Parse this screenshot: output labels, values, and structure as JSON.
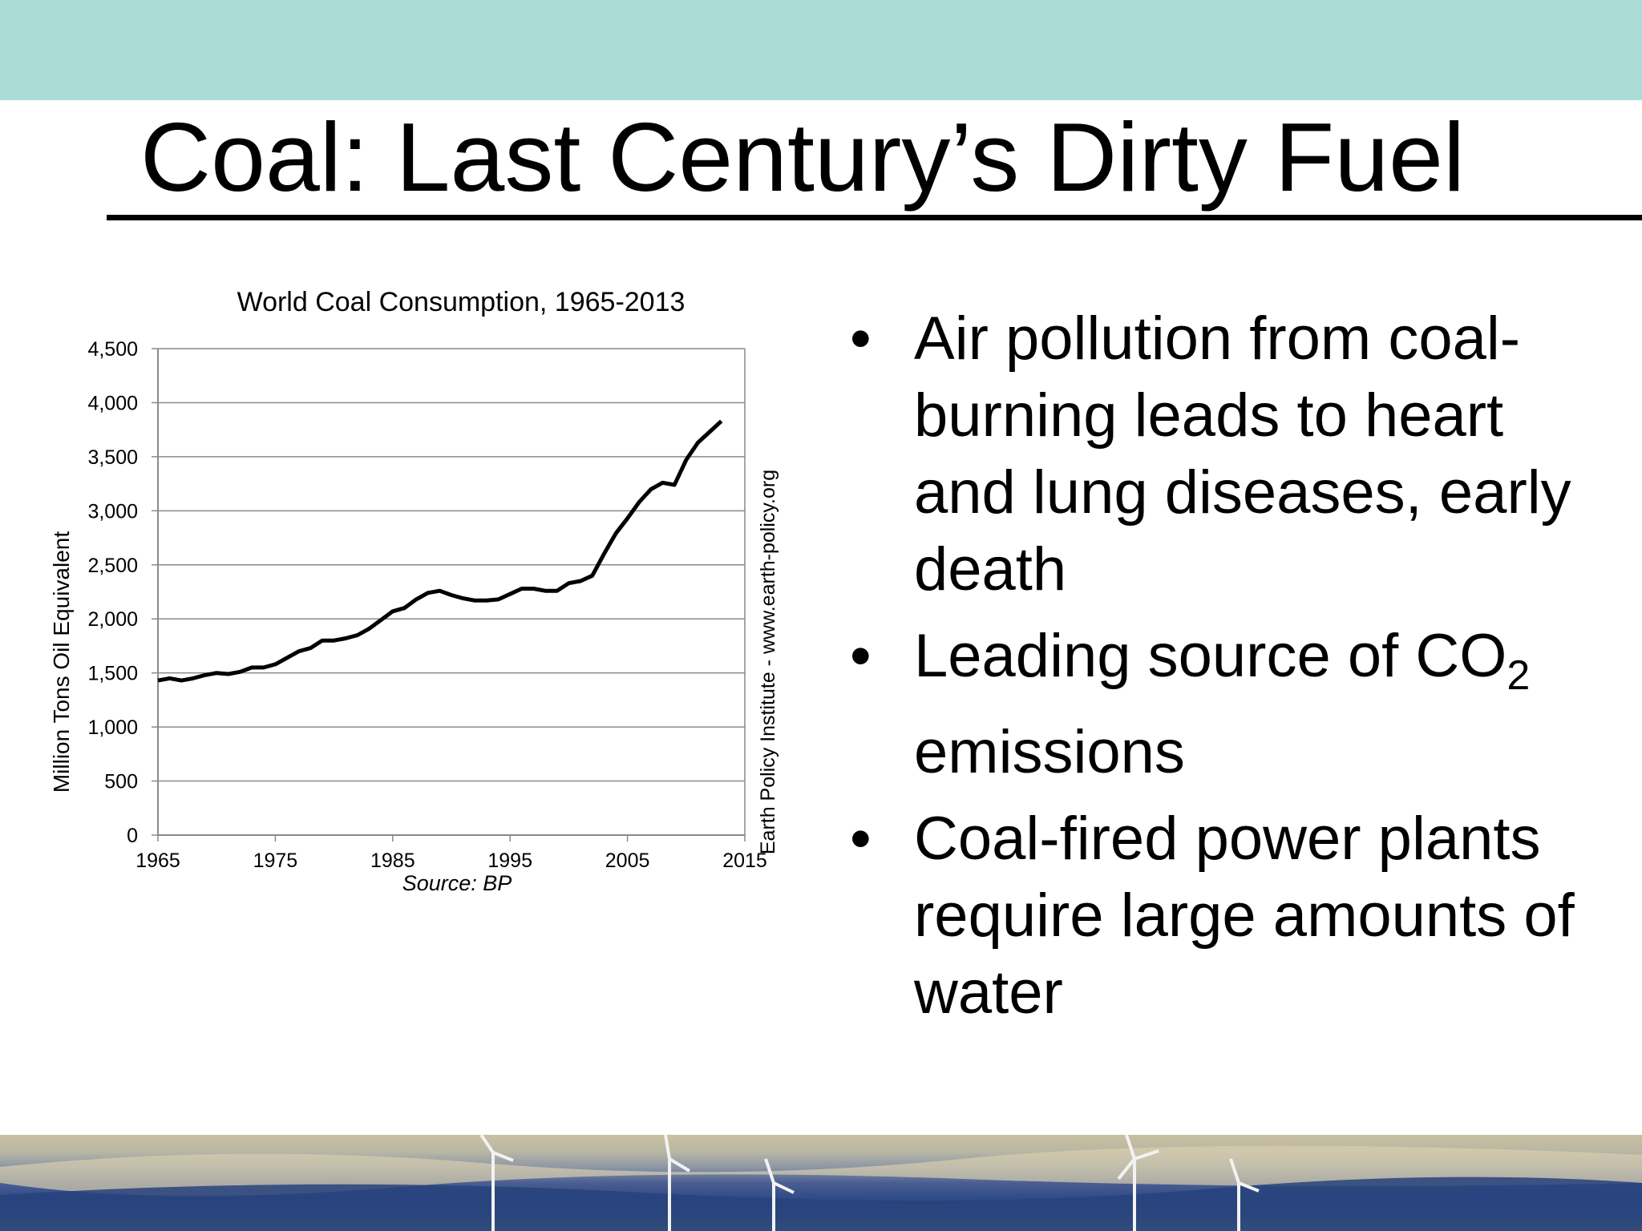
{
  "slide": {
    "title": "Coal: Last Century’s Dirty Fuel",
    "colors": {
      "top_band": "#acdcd6",
      "text": "#000000",
      "line": "#000000"
    }
  },
  "bullets": [
    {
      "text": "Air pollution from coal-burning leads to heart and lung diseases, early death"
    },
    {
      "text_before": "Leading source of CO",
      "subscript": "2",
      "text_after": " emissions"
    },
    {
      "text": "Coal-fired power plants require large amounts of water"
    }
  ],
  "bottom_image": {
    "description_icon": "wind-turbines-landscape"
  },
  "chart_data": {
    "type": "line",
    "title": "World Coal Consumption, 1965-2013",
    "ylabel": "Million Tons Oil Equivalent",
    "xlabel": "",
    "source": "Source: BP",
    "side_label": "Earth Policy Institute - www.earth-policy.org",
    "xlim": [
      1965,
      2015
    ],
    "ylim": [
      0,
      4500
    ],
    "x_ticks": [
      "1965",
      "1975",
      "1985",
      "1995",
      "2005",
      "2015"
    ],
    "y_ticks": [
      "0",
      "500",
      "1,000",
      "1,500",
      "2,000",
      "2,500",
      "3,000",
      "3,500",
      "4,000",
      "4,500"
    ],
    "y_tick_values": [
      0,
      500,
      1000,
      1500,
      2000,
      2500,
      3000,
      3500,
      4000,
      4500
    ],
    "x_tick_values": [
      1965,
      1975,
      1985,
      1995,
      2005,
      2015
    ],
    "grid": "horizontal",
    "series": [
      {
        "x": [
          1965,
          1966,
          1967,
          1968,
          1969,
          1970,
          1971,
          1972,
          1973,
          1974,
          1975,
          1976,
          1977,
          1978,
          1979,
          1980,
          1981,
          1982,
          1983,
          1984,
          1985,
          1986,
          1987,
          1988,
          1989,
          1990,
          1991,
          1992,
          1993,
          1994,
          1995,
          1996,
          1997,
          1998,
          1999,
          2000,
          2001,
          2002,
          2003,
          2004,
          2005,
          2006,
          2007,
          2008,
          2009,
          2010,
          2011,
          2012,
          2013
        ],
        "values": [
          1430,
          1450,
          1430,
          1450,
          1480,
          1500,
          1490,
          1510,
          1550,
          1550,
          1580,
          1640,
          1700,
          1730,
          1800,
          1800,
          1820,
          1850,
          1910,
          1990,
          2070,
          2100,
          2180,
          2240,
          2260,
          2220,
          2190,
          2170,
          2170,
          2180,
          2230,
          2280,
          2280,
          2260,
          2260,
          2330,
          2350,
          2400,
          2600,
          2790,
          2930,
          3080,
          3200,
          3260,
          3240,
          3470,
          3630,
          3730,
          3830
        ]
      }
    ]
  }
}
